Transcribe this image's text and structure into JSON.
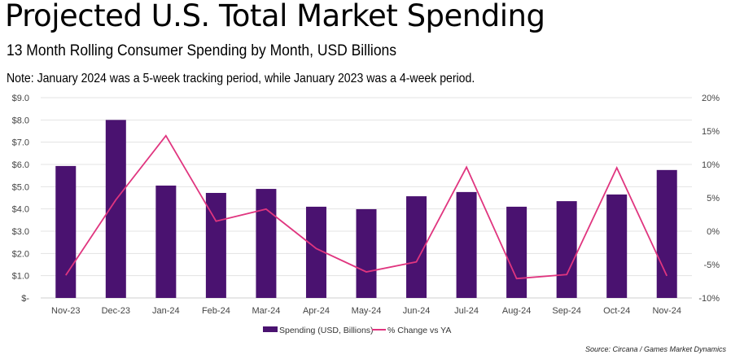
{
  "header": {
    "title": "Projected U.S. Total Market Spending",
    "subtitle": "13 Month Rolling Consumer Spending by Month, USD Billions",
    "note": "Note: January 2024 was a 5-week tracking period, while January 2023 was a 4-week period."
  },
  "source": "Source: Circana / Games Market Dynamics",
  "chart_data": {
    "type": "bar",
    "title": "Projected U.S. Total Market Spending",
    "categories": [
      "Nov-23",
      "Dec-23",
      "Jan-24",
      "Feb-24",
      "Mar-24",
      "Apr-24",
      "May-24",
      "Jun-24",
      "Jul-24",
      "Aug-24",
      "Sep-24",
      "Oct-24",
      "Nov-24"
    ],
    "series": [
      {
        "name": "Spending (USD, Billions)",
        "type": "bar",
        "axis": "left",
        "color": "#4a1270",
        "values": [
          5.93,
          8.0,
          5.05,
          4.72,
          4.9,
          4.1,
          3.99,
          4.57,
          4.76,
          4.1,
          4.35,
          4.65,
          5.75
        ]
      },
      {
        "name": "% Change vs YA",
        "type": "line",
        "axis": "right",
        "color": "#e0357f",
        "values": [
          -6.6,
          4.7,
          14.3,
          1.5,
          3.3,
          -2.6,
          -6.1,
          -4.6,
          9.6,
          -7.1,
          -6.5,
          9.5,
          -6.7
        ]
      }
    ],
    "left_axis": {
      "ylim": [
        0,
        9
      ],
      "ticks": [
        "$-",
        "$1.0",
        "$2.0",
        "$3.0",
        "$4.0",
        "$5.0",
        "$6.0",
        "$7.0",
        "$8.0",
        "$9.0"
      ]
    },
    "right_axis": {
      "ylim": [
        -10,
        20
      ],
      "ticks": [
        "-10%",
        "-5%",
        "0%",
        "5%",
        "10%",
        "15%",
        "20%"
      ]
    },
    "grid": true,
    "legend": "bottom-center"
  }
}
